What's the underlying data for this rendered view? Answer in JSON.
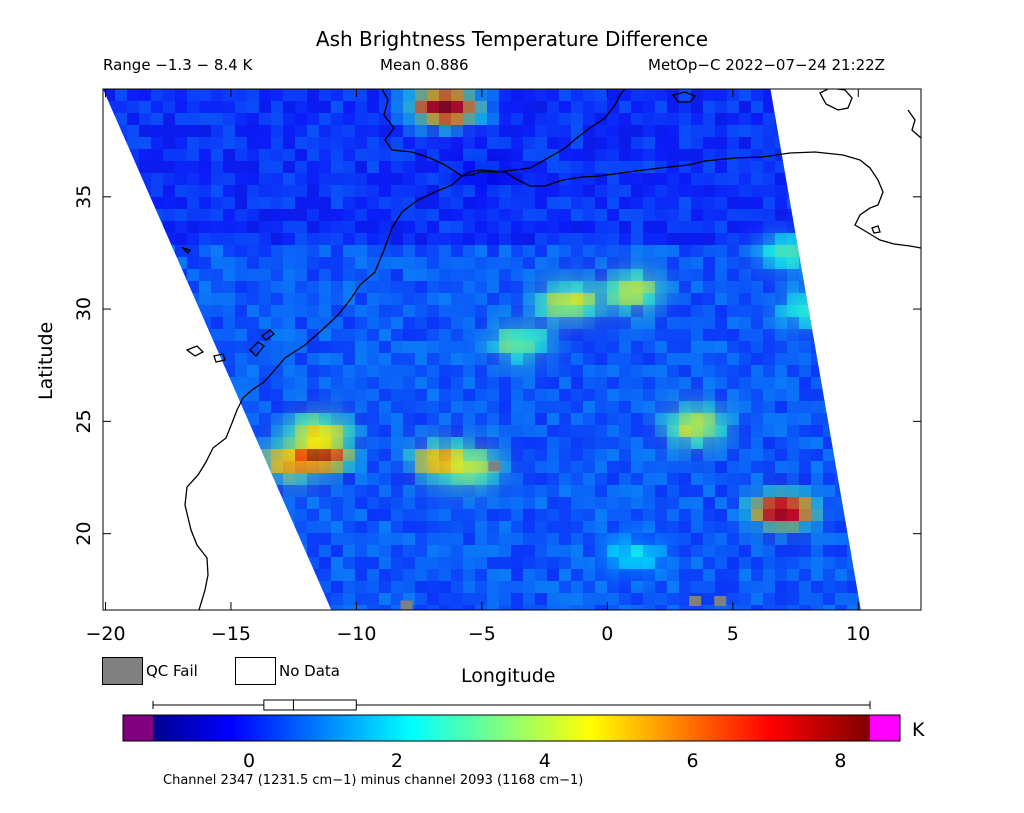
{
  "header": {
    "title": "Ash Brightness Temperature Difference",
    "range": "Range −1.3 − 8.4 K",
    "mean": "Mean 0.886",
    "satellite": "MetOp−C 2022−07−24 21:22Z"
  },
  "legend": {
    "qc_fail_label": "QC Fail",
    "qc_fail_color": "#808080",
    "no_data_label": "No Data",
    "no_data_color": "#ffffff"
  },
  "colorbar": {
    "unit": "K",
    "footnote": "Channel 2347 (1231.5 cm−1) minus channel 2093 (1168 cm−1)",
    "ticks": [
      0,
      2,
      4,
      6,
      8
    ],
    "range": [
      -1.3,
      8.4
    ],
    "under_color": "#800080",
    "over_color": "#ff00ff",
    "box_plot": {
      "whisker_low": -1.3,
      "q1": 0.2,
      "median": 0.6,
      "q3": 1.45,
      "whisker_high": 8.4
    }
  },
  "chart_data": {
    "type": "heatmap",
    "title": "Ash Brightness Temperature Difference",
    "xlabel": "Longitude",
    "ylabel": "Latitude",
    "xlim": [
      -20.1,
      12.5
    ],
    "ylim": [
      16.6,
      39.8
    ],
    "x_ticks": [
      -20,
      -15,
      -10,
      -5,
      0,
      5,
      10
    ],
    "y_ticks": [
      20,
      25,
      30,
      35
    ],
    "value_range": [
      -1.3,
      8.4
    ],
    "mean": 0.886,
    "unit": "K",
    "swath_corners": [
      [
        -20.1,
        39.8
      ],
      [
        6.5,
        39.8
      ],
      [
        10.1,
        16.6
      ],
      [
        -11.0,
        16.6
      ]
    ],
    "features": [
      {
        "lon": -11.5,
        "lat": 23.5,
        "value": 8.0
      },
      {
        "lon": -12.5,
        "lat": 23.2,
        "value": 6.0
      },
      {
        "lon": -11.5,
        "lat": 24.5,
        "value": 4.5
      },
      {
        "lon": -6.5,
        "lat": 23.2,
        "value": 6.0
      },
      {
        "lon": -5.5,
        "lat": 23.0,
        "value": 4.5
      },
      {
        "lon": -1.5,
        "lat": 30.3,
        "value": 4.4
      },
      {
        "lon": 1.0,
        "lat": 30.8,
        "value": 4.2
      },
      {
        "lon": -3.5,
        "lat": 28.5,
        "value": 3.5
      },
      {
        "lon": 8.0,
        "lat": 30.0,
        "value": 3.0
      },
      {
        "lon": 7.0,
        "lat": 32.5,
        "value": 2.8
      },
      {
        "lon": 3.5,
        "lat": 24.8,
        "value": 4.5
      },
      {
        "lon": 7.0,
        "lat": 21.0,
        "value": 8.0
      },
      {
        "lon": -6.5,
        "lat": 39.0,
        "value": 8.0
      },
      {
        "lon": 1.0,
        "lat": 19.0,
        "value": 2.2
      },
      {
        "lon": -5.0,
        "lat": 36.0,
        "value": -0.5
      }
    ],
    "qc_fail_points": [
      [
        3.5,
        17.0
      ],
      [
        4.5,
        17.0
      ],
      [
        -8.0,
        16.8
      ],
      [
        -4.5,
        23.0
      ]
    ]
  }
}
